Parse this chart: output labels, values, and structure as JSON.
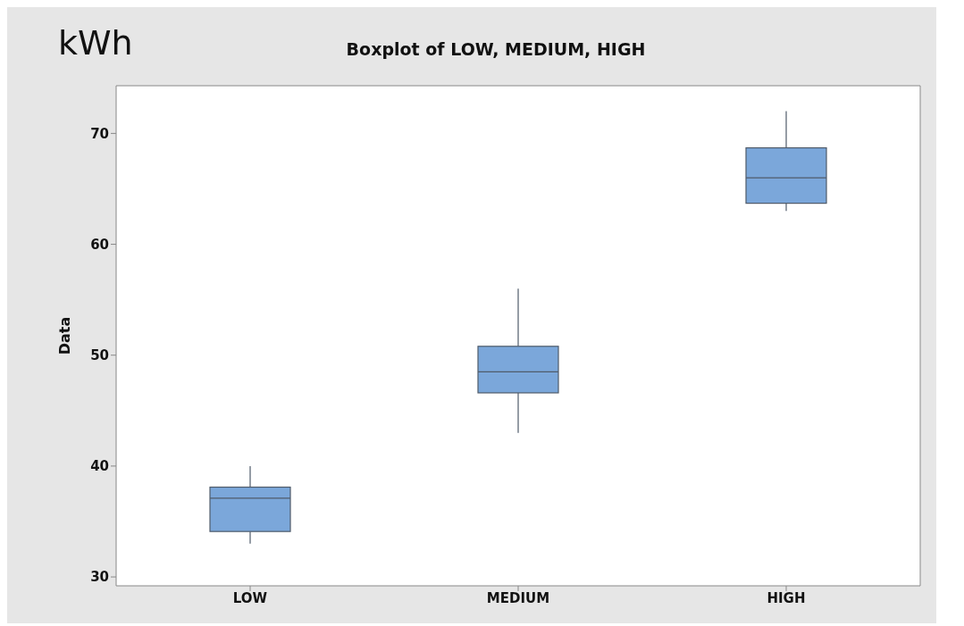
{
  "chart_data": {
    "type": "box",
    "title": "Boxplot of LOW, MEDIUM, HIGH",
    "ylabel": "Data",
    "annotations": [
      "kWh"
    ],
    "categories": [
      "LOW",
      "MEDIUM",
      "HIGH"
    ],
    "boxes": [
      {
        "low": 33,
        "q1": 34.1,
        "median": 37.1,
        "q3": 38.1,
        "high": 40
      },
      {
        "low": 43,
        "q1": 46.6,
        "median": 48.5,
        "q3": 50.8,
        "high": 56
      },
      {
        "low": 63,
        "q1": 63.7,
        "median": 66,
        "q3": 68.7,
        "high": 72
      }
    ],
    "color": "#7ba7da",
    "ylim": [
      29.2,
      74.3
    ],
    "yticks": [
      30,
      40,
      50,
      60,
      70
    ]
  }
}
